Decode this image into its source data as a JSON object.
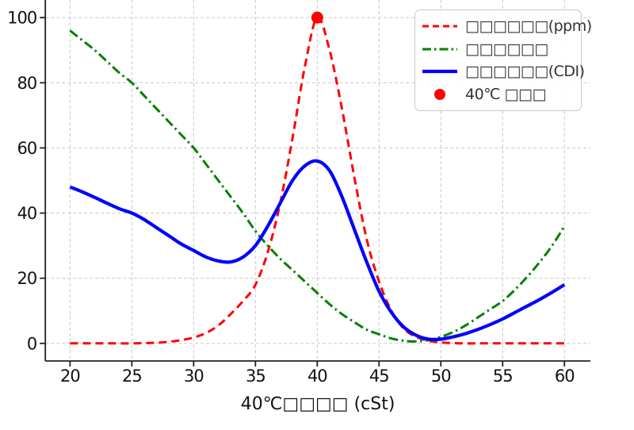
{
  "chart_data": {
    "type": "line",
    "title": "",
    "xlabel": "40℃□□□□ (cSt)",
    "ylabel": "",
    "xlim": [
      18,
      62.1
    ],
    "ylim": [
      -5.4,
      105.4
    ],
    "xticks": [
      20,
      25,
      30,
      35,
      40,
      45,
      50,
      55,
      60
    ],
    "yticks": [
      0,
      20,
      40,
      60,
      80,
      100
    ],
    "grid": true,
    "legend_position": "upper right",
    "x": [
      20,
      21,
      22,
      23,
      24,
      25,
      26,
      27,
      28,
      29,
      30,
      31,
      32,
      33,
      34,
      35,
      36,
      37,
      38,
      39,
      40,
      41,
      42,
      43,
      44,
      45,
      46,
      47,
      48,
      49,
      50,
      51,
      52,
      53,
      54,
      55,
      56,
      57,
      58,
      59,
      60
    ],
    "series": [
      {
        "label": "□□□□□□(ppm)",
        "color": "#ff0000",
        "line_style": "dashed",
        "line_width": 3,
        "values": [
          0,
          0,
          0,
          0,
          0,
          0,
          0.1,
          0.2,
          0.5,
          1,
          1.8,
          3.2,
          5.5,
          9,
          13,
          18,
          28,
          43,
          63,
          85,
          100,
          90,
          72,
          51,
          32,
          19,
          10,
          4.5,
          2,
          0.8,
          0.3,
          0.1,
          0,
          0,
          0,
          0,
          0,
          0,
          0,
          0,
          0
        ]
      },
      {
        "label": "□□□□□□",
        "color": "#008000",
        "line_style": "dashdot",
        "line_width": 3,
        "values": [
          96,
          93,
          90,
          86.5,
          83,
          80,
          76,
          72,
          68,
          64,
          60,
          55,
          50,
          45,
          40,
          34.5,
          30,
          26,
          22.5,
          19,
          15.5,
          12,
          9,
          6.5,
          4.2,
          2.8,
          1.5,
          0.8,
          0.6,
          1,
          2,
          3.5,
          5.5,
          8,
          10.5,
          13,
          16.5,
          20.5,
          25,
          30,
          36
        ]
      },
      {
        "label": "□□□□□□(CDI)",
        "color": "#0000ff",
        "line_style": "solid",
        "line_width": 4.2,
        "values": [
          48,
          46.5,
          44.8,
          43,
          41.3,
          40,
          38,
          35.5,
          33,
          30.5,
          28.5,
          26.5,
          25.3,
          25,
          26.5,
          30,
          36,
          43,
          50,
          54.5,
          56,
          53,
          45,
          35,
          25,
          16,
          9.5,
          5,
          2.5,
          1.3,
          1.3,
          2,
          3,
          4.3,
          5.8,
          7.5,
          9.5,
          11.5,
          13.5,
          15.7,
          18
        ]
      }
    ],
    "marker": {
      "label": "40℃ □□□",
      "x": 40,
      "y": 100,
      "color": "#ff0000",
      "size": 7.5
    },
    "colors": {
      "grid": "#cdcdcd",
      "spine": "#222222",
      "tick_text": "#111111",
      "legend_border": "#c9c9c9",
      "legend_text": "#333333",
      "background": "#ffffff"
    }
  }
}
